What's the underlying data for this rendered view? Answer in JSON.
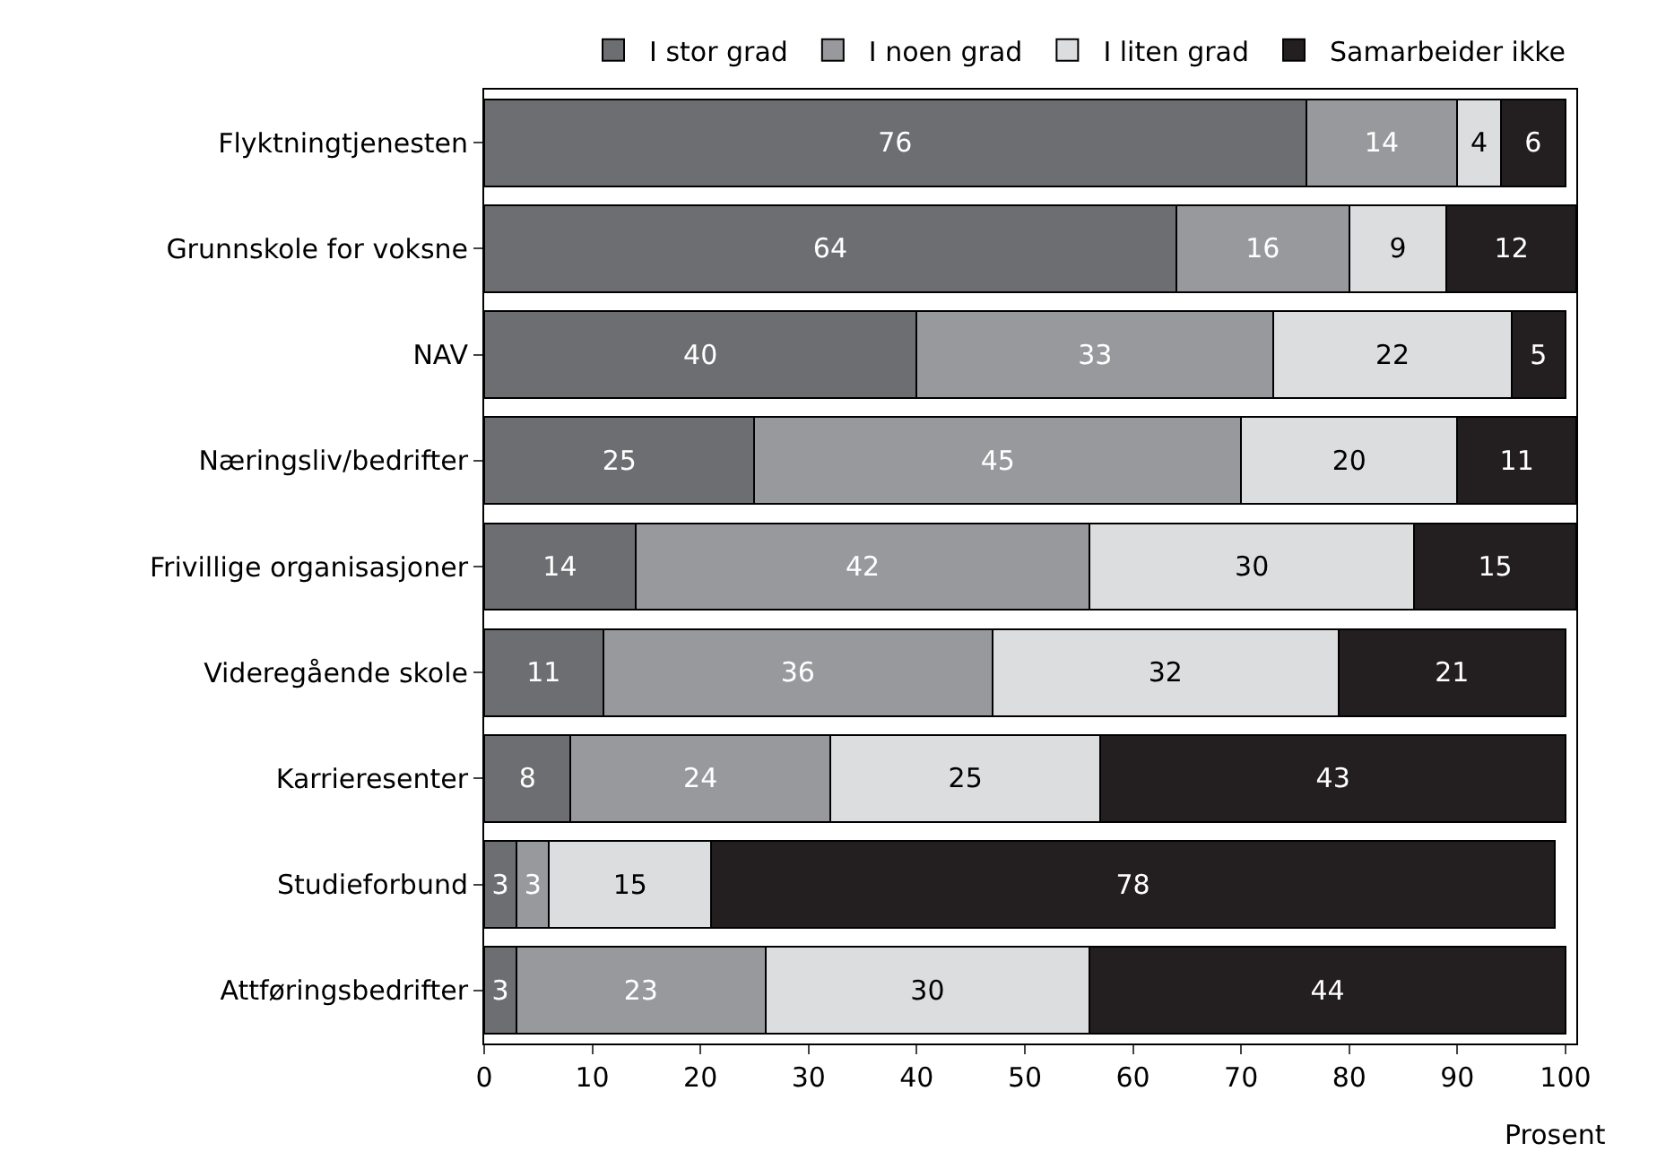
{
  "chart_data": {
    "type": "bar",
    "orientation": "horizontal",
    "stacked": true,
    "data_labels": true,
    "legend": "top right",
    "xlabel": "Prosent",
    "xlim": [
      0,
      101
    ],
    "xticks": [
      0,
      10,
      20,
      30,
      40,
      50,
      60,
      70,
      80,
      90,
      100
    ],
    "categories": [
      "Flyktningtjenesten",
      "Grunnskole for voksne",
      "NAV",
      "Næringsliv/bedrifter",
      "Frivillige organisasjoner",
      "Videregående skole",
      "Karrieresenter",
      "Studieforbund",
      "Attføringsbedrifter"
    ],
    "series": [
      {
        "name": "I stor grad",
        "color": "#6d6e71",
        "values": [
          76,
          64,
          40,
          25,
          14,
          11,
          8,
          3,
          3
        ]
      },
      {
        "name": "I noen grad",
        "color": "#98999c",
        "values": [
          14,
          16,
          33,
          45,
          42,
          36,
          24,
          3,
          23
        ]
      },
      {
        "name": "I liten grad",
        "color": "#dcddde",
        "values": [
          4,
          9,
          22,
          20,
          30,
          32,
          25,
          15,
          30
        ]
      },
      {
        "name": "Samarbeider ikke",
        "color": "#231f20",
        "values": [
          6,
          12,
          5,
          11,
          15,
          21,
          43,
          78,
          44
        ]
      }
    ]
  }
}
